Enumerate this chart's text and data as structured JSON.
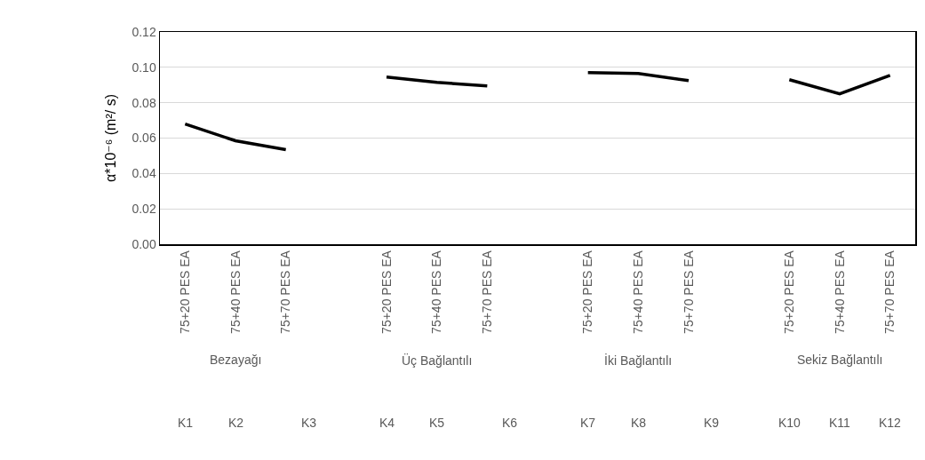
{
  "chart_data": {
    "type": "line",
    "ylabel": "α*10⁻⁶ (m²/ s)",
    "categories": [
      "75+20 PES EA",
      "75+40 PES EA",
      "75+70 PES EA",
      null,
      "75+20 PES EA",
      "75+40 PES EA",
      "75+70 PES EA",
      null,
      "75+20 PES EA",
      "75+40 PES EA",
      "75+70 PES EA",
      null,
      "75+20 PES EA",
      "75+40 PES EA",
      "75+70 PES EA"
    ],
    "series": [
      {
        "color": "#000000",
        "values": [
          0.068,
          0.0585,
          0.0535,
          null,
          0.0945,
          0.0915,
          0.0895,
          null,
          0.097,
          0.0965,
          0.0925,
          null,
          0.093,
          0.085,
          0.0955
        ]
      }
    ],
    "ylim": [
      0,
      0.12
    ],
    "yticks": [
      {
        "value": 0,
        "label": "0.00"
      },
      {
        "value": 0.02,
        "label": "0.02"
      },
      {
        "value": 0.04,
        "label": "0.04"
      },
      {
        "value": 0.06,
        "label": "0.06"
      },
      {
        "value": 0.08,
        "label": "0.08"
      },
      {
        "value": 0.1,
        "label": "0.10"
      },
      {
        "value": 0.12,
        "label": "0.12"
      }
    ],
    "grid": "y",
    "marker": "none",
    "line_style": "solid",
    "annotations": [
      "Bezayağı",
      "Üç Bağlantılı",
      "İki Bağlantılı",
      "Sekiz Bağlantılı",
      "K1",
      "K2",
      "K3",
      "K4",
      "K5",
      "K6",
      "K7",
      "K8",
      "K9",
      "K10",
      "K11",
      "K12"
    ]
  }
}
